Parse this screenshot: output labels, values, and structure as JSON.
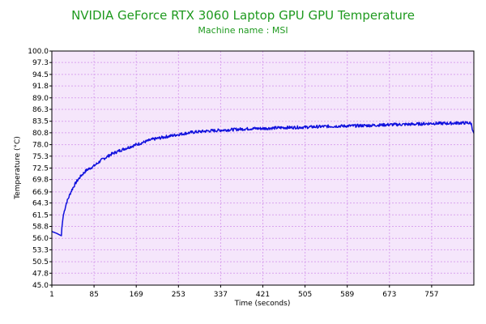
{
  "chart_data": {
    "type": "line",
    "title": "NVIDIA GeForce RTX 3060 Laptop GPU GPU Temperature",
    "subtitle": "Machine name : MSI",
    "xlabel": "Time (seconds)",
    "ylabel": "Temperature (°C)",
    "xlim": [
      1,
      841
    ],
    "ylim": [
      45.0,
      100.0
    ],
    "x_ticks": [
      "1",
      "85",
      "169",
      "253",
      "337",
      "421",
      "505",
      "589",
      "673",
      "757"
    ],
    "x_tick_values": [
      1,
      85,
      169,
      253,
      337,
      421,
      505,
      589,
      673,
      757
    ],
    "y_ticks": [
      "45.0",
      "47.8",
      "50.5",
      "53.3",
      "56.0",
      "58.8",
      "61.5",
      "64.3",
      "66.9",
      "69.8",
      "72.5",
      "75.3",
      "78.0",
      "80.8",
      "83.5",
      "86.3",
      "89.0",
      "91.8",
      "94.5",
      "97.3",
      "100.0"
    ],
    "grid": true,
    "legend": "none",
    "colors": {
      "line": "#1010dd",
      "plot_background": "#f5e6fb",
      "grid": "#d9a3ee",
      "title": "#1f9a1f"
    },
    "series": [
      {
        "x": [
          1,
          10,
          20,
          21,
          24,
          30,
          40,
          50,
          60,
          70,
          85,
          100,
          120,
          140,
          169,
          200,
          230,
          253,
          280,
          310,
          337,
          370,
          400,
          421,
          460,
          505,
          550,
          589,
          630,
          673,
          720,
          757,
          790,
          810,
          830,
          836,
          838,
          841
        ],
        "y": [
          57.6,
          57.2,
          56.6,
          58.5,
          61.5,
          64.3,
          67.2,
          69.3,
          70.8,
          72.0,
          73.0,
          74.4,
          75.8,
          76.8,
          78.0,
          79.2,
          79.9,
          80.4,
          80.9,
          81.2,
          81.4,
          81.6,
          81.8,
          81.8,
          82.0,
          82.1,
          82.3,
          82.4,
          82.5,
          82.7,
          82.8,
          83.0,
          83.0,
          83.1,
          83.1,
          83.0,
          81.5,
          80.7
        ]
      }
    ]
  }
}
